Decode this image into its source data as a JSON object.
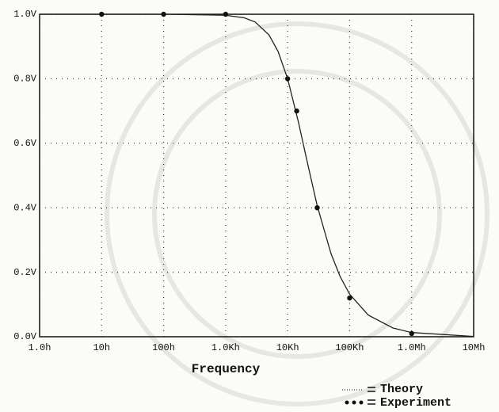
{
  "chart_data": {
    "type": "line",
    "x_label": "Frequency",
    "xscale": "log",
    "xlim": [
      1,
      10000000
    ],
    "xticks": [
      {
        "value": 1,
        "label": "1.0h"
      },
      {
        "value": 10,
        "label": "10h"
      },
      {
        "value": 100,
        "label": "100h"
      },
      {
        "value": 1000,
        "label": "1.0Kh"
      },
      {
        "value": 10000,
        "label": "10Kh"
      },
      {
        "value": 100000,
        "label": "100Kh"
      },
      {
        "value": 1000000,
        "label": "1.0Mh"
      },
      {
        "value": 10000000,
        "label": "10Mh"
      }
    ],
    "ylim": [
      0,
      1
    ],
    "yticks": [
      {
        "value": 0,
        "label": "0.0V"
      },
      {
        "value": 0.2,
        "label": "0.2V"
      },
      {
        "value": 0.4,
        "label": "0.4V"
      },
      {
        "value": 0.6,
        "label": "0.6V"
      },
      {
        "value": 0.8,
        "label": "0.8V"
      },
      {
        "value": 1,
        "label": "1.0V"
      }
    ],
    "grid": true,
    "legend": "bottom-right",
    "series": [
      {
        "name": "Theory",
        "mode": "line",
        "color": "#222222",
        "x": [
          1,
          10,
          100,
          1000,
          2000,
          3000,
          5000,
          7000,
          10000,
          15000,
          20000,
          30000,
          50000,
          70000,
          100000,
          200000,
          500000,
          1000000,
          10000000
        ],
        "values": [
          1,
          1,
          1,
          0.997,
          0.989,
          0.976,
          0.936,
          0.885,
          0.8,
          0.664,
          0.555,
          0.406,
          0.258,
          0.187,
          0.132,
          0.067,
          0.027,
          0.013,
          0.001
        ]
      },
      {
        "name": "Experiment",
        "mode": "markers",
        "color": "#111111",
        "x": [
          10,
          100,
          1000,
          10000,
          14000,
          30000,
          100000,
          1000000
        ],
        "values": [
          1,
          1,
          1,
          0.8,
          0.7,
          0.4,
          0.12,
          0.01
        ]
      }
    ]
  }
}
